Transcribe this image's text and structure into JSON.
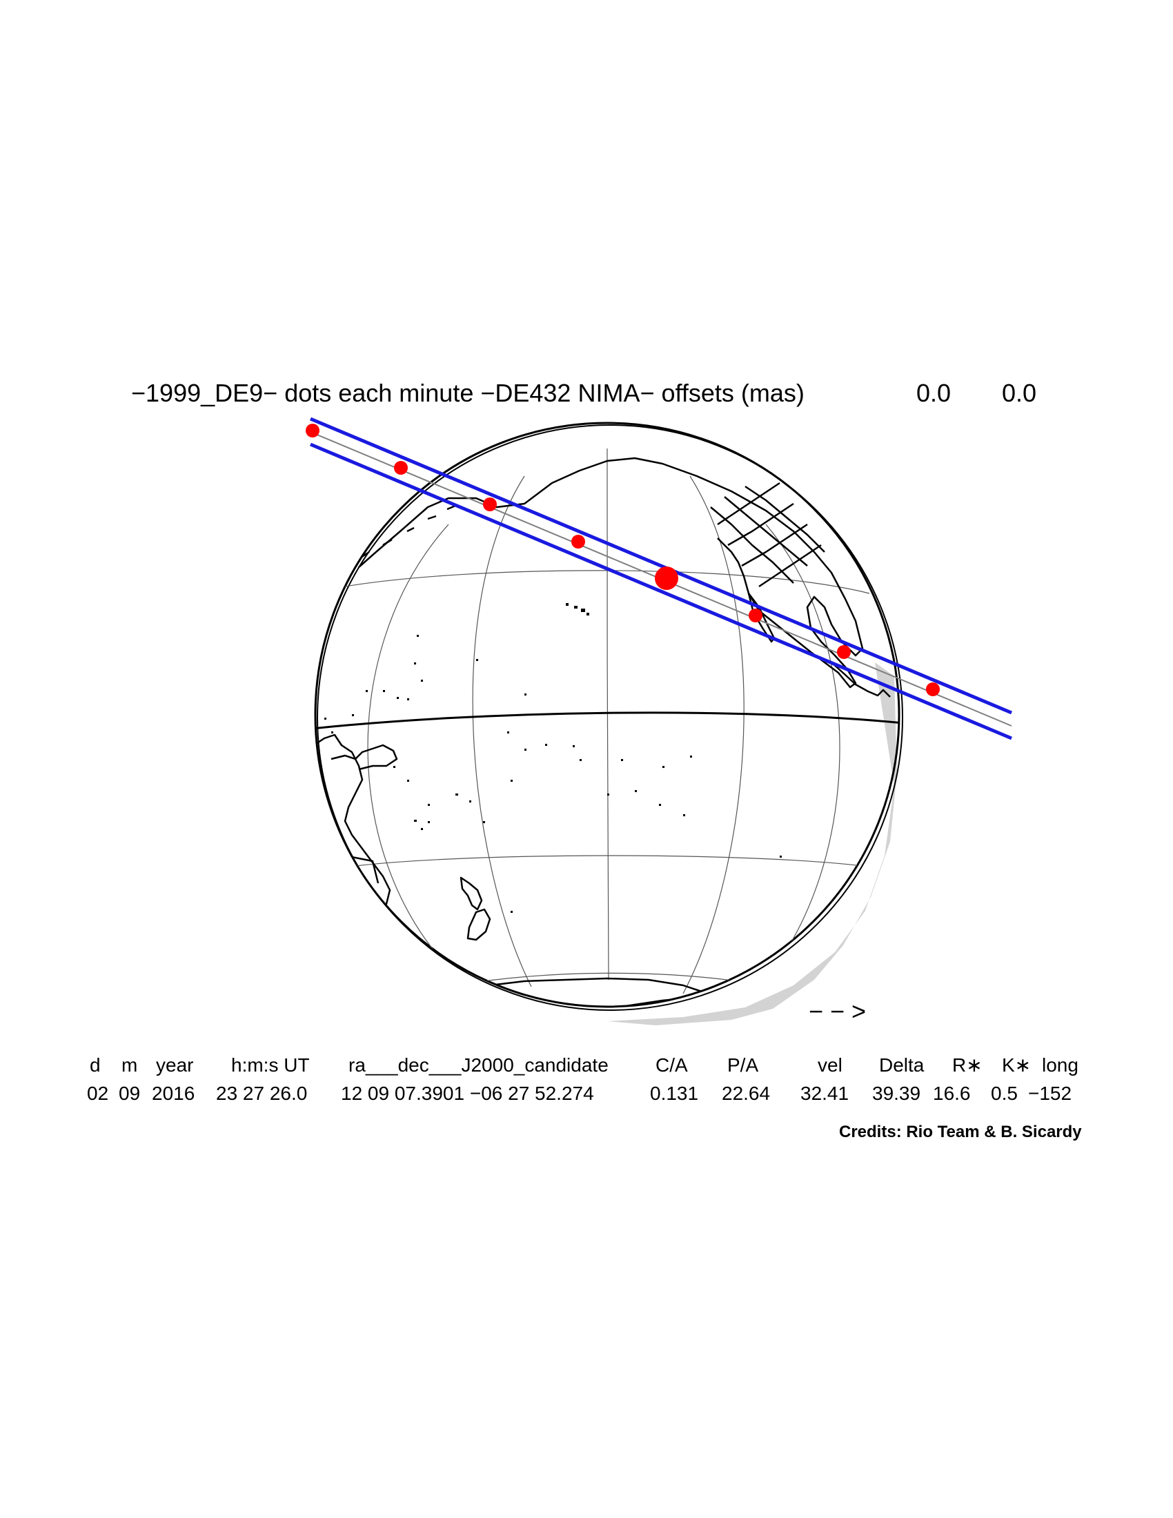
{
  "title": {
    "main": "−1999_DE9− dots each minute −DE432 NIMA− offsets (mas)",
    "offset_ra": "0.0",
    "offset_dec": "0.0"
  },
  "direction_arrow": "− − >",
  "table": {
    "headers": [
      "d",
      "m",
      "year",
      "h:m:s UT",
      "ra___dec___J2000_candidate",
      "C/A",
      "P/A",
      "vel",
      "Delta",
      "R∗",
      "K∗",
      "long"
    ],
    "values": [
      "02",
      "09",
      "2016",
      "23 27 26.0",
      "12 09 07.3901 −06 27 52.274",
      "0.131",
      "22.64",
      "32.41",
      "39.39",
      "16.6",
      "0.5",
      "−152"
    ]
  },
  "credits": "Credits: Rio Team & B. Sicardy",
  "colors": {
    "shadow_path": "#1a1adf",
    "minute_dots": "#ff0000",
    "globe_shading": "#d3d3d3",
    "central_line": "#7f7f7f"
  },
  "map": {
    "projection": "orthographic globe",
    "minute_dot_count": 8,
    "closest_approach_dot_index": 4
  }
}
